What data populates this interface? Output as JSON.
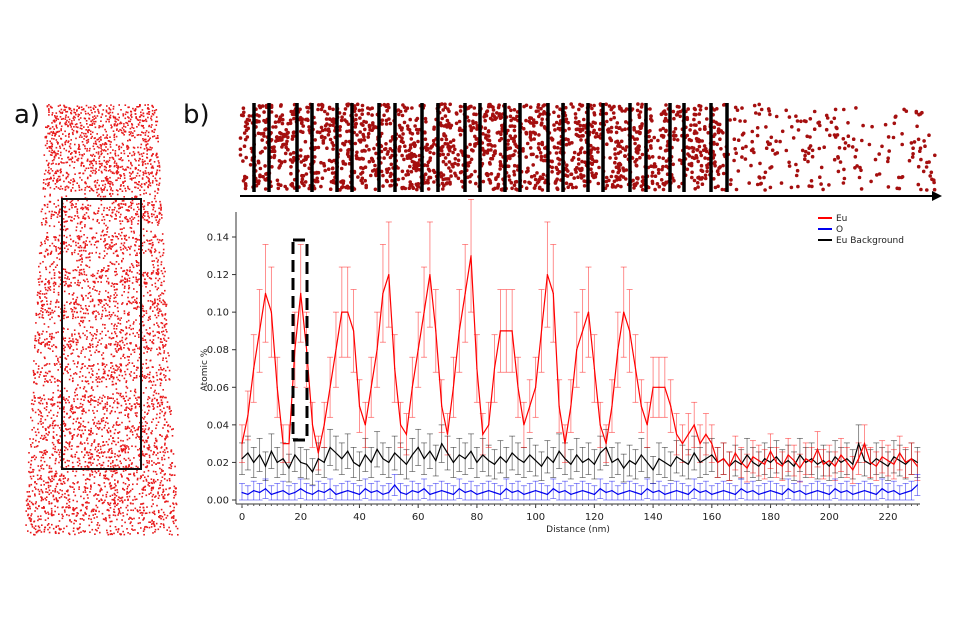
{
  "panels": {
    "a_label": "a)",
    "b_label": "b)"
  },
  "colors": {
    "eu": "#ff0000",
    "o": "#0000ee",
    "eu_background": "#000000",
    "atoms_a": "#e8191b",
    "atoms_b": "#a50f0f"
  },
  "chart_data": {
    "type": "line",
    "xlabel": "Distance (nm)",
    "ylabel": "Atomic %",
    "xlim": [
      0,
      230
    ],
    "ylim": [
      0,
      0.153
    ],
    "xticks": [
      "0",
      "20",
      "40",
      "60",
      "80",
      "100",
      "120",
      "140",
      "160",
      "180",
      "200",
      "220"
    ],
    "yticks": [
      "0.00",
      "0.02",
      "0.04",
      "0.06",
      "0.08",
      "0.10",
      "0.12",
      "0.14"
    ],
    "legend_position": "top-right",
    "grid": false,
    "error_bars": true,
    "highlight_region_nm": [
      18,
      22
    ],
    "x_step_nm": 2,
    "series": [
      {
        "name": "Eu",
        "color": "#ff0000",
        "values": [
          0.03,
          0.045,
          0.07,
          0.09,
          0.11,
          0.1,
          0.06,
          0.03,
          0.03,
          0.08,
          0.11,
          0.08,
          0.04,
          0.025,
          0.04,
          0.06,
          0.08,
          0.1,
          0.1,
          0.09,
          0.05,
          0.04,
          0.06,
          0.08,
          0.11,
          0.12,
          0.07,
          0.04,
          0.035,
          0.06,
          0.08,
          0.1,
          0.12,
          0.09,
          0.05,
          0.035,
          0.06,
          0.09,
          0.11,
          0.13,
          0.07,
          0.035,
          0.04,
          0.07,
          0.09,
          0.09,
          0.09,
          0.06,
          0.04,
          0.05,
          0.06,
          0.09,
          0.12,
          0.11,
          0.05,
          0.03,
          0.05,
          0.08,
          0.09,
          0.1,
          0.07,
          0.04,
          0.03,
          0.05,
          0.08,
          0.1,
          0.09,
          0.07,
          0.05,
          0.04,
          0.06,
          0.06,
          0.06,
          0.05,
          0.035,
          0.03,
          0.035,
          0.04,
          0.03,
          0.035,
          0.03,
          0.02,
          0.022,
          0.018,
          0.025,
          0.02,
          0.017,
          0.023,
          0.021,
          0.019,
          0.026,
          0.02,
          0.018,
          0.024,
          0.021,
          0.017,
          0.022,
          0.02,
          0.027,
          0.019,
          0.021,
          0.018,
          0.024,
          0.02,
          0.016,
          0.022,
          0.03,
          0.02,
          0.018,
          0.023,
          0.021,
          0.019,
          0.025,
          0.02,
          0.022,
          0.018
        ]
      },
      {
        "name": "O",
        "color": "#0000ee",
        "values": [
          0.004,
          0.003,
          0.005,
          0.004,
          0.006,
          0.003,
          0.004,
          0.005,
          0.003,
          0.004,
          0.006,
          0.004,
          0.003,
          0.005,
          0.004,
          0.006,
          0.003,
          0.004,
          0.005,
          0.004,
          0.003,
          0.006,
          0.004,
          0.005,
          0.003,
          0.004,
          0.008,
          0.004,
          0.003,
          0.005,
          0.004,
          0.006,
          0.003,
          0.004,
          0.005,
          0.004,
          0.003,
          0.006,
          0.004,
          0.005,
          0.003,
          0.004,
          0.005,
          0.004,
          0.003,
          0.006,
          0.004,
          0.005,
          0.003,
          0.004,
          0.005,
          0.004,
          0.003,
          0.006,
          0.004,
          0.005,
          0.003,
          0.004,
          0.005,
          0.004,
          0.003,
          0.006,
          0.004,
          0.005,
          0.003,
          0.004,
          0.005,
          0.004,
          0.003,
          0.006,
          0.004,
          0.005,
          0.003,
          0.004,
          0.005,
          0.004,
          0.003,
          0.006,
          0.004,
          0.005,
          0.003,
          0.004,
          0.005,
          0.004,
          0.003,
          0.006,
          0.004,
          0.005,
          0.003,
          0.004,
          0.005,
          0.004,
          0.003,
          0.006,
          0.004,
          0.005,
          0.003,
          0.004,
          0.005,
          0.004,
          0.003,
          0.006,
          0.004,
          0.005,
          0.003,
          0.004,
          0.005,
          0.004,
          0.003,
          0.006,
          0.004,
          0.005,
          0.003,
          0.004,
          0.005,
          0.008
        ]
      },
      {
        "name": "Eu Background",
        "color": "#000000",
        "values": [
          0.022,
          0.025,
          0.02,
          0.024,
          0.018,
          0.026,
          0.02,
          0.022,
          0.017,
          0.024,
          0.02,
          0.019,
          0.015,
          0.022,
          0.02,
          0.028,
          0.025,
          0.022,
          0.026,
          0.02,
          0.018,
          0.024,
          0.02,
          0.027,
          0.022,
          0.02,
          0.025,
          0.022,
          0.019,
          0.024,
          0.028,
          0.022,
          0.026,
          0.021,
          0.03,
          0.025,
          0.02,
          0.024,
          0.022,
          0.026,
          0.02,
          0.024,
          0.021,
          0.019,
          0.023,
          0.02,
          0.025,
          0.022,
          0.02,
          0.024,
          0.021,
          0.018,
          0.023,
          0.02,
          0.026,
          0.022,
          0.019,
          0.024,
          0.02,
          0.022,
          0.019,
          0.025,
          0.028,
          0.02,
          0.022,
          0.017,
          0.021,
          0.019,
          0.024,
          0.02,
          0.016,
          0.022,
          0.02,
          0.018,
          0.023,
          0.021,
          0.019,
          0.025,
          0.02,
          0.022,
          0.024,
          0.02,
          0.022,
          0.018,
          0.021,
          0.019,
          0.024,
          0.02,
          0.018,
          0.022,
          0.02,
          0.023,
          0.019,
          0.021,
          0.018,
          0.024,
          0.02,
          0.022,
          0.019,
          0.021,
          0.018,
          0.023,
          0.02,
          0.022,
          0.019,
          0.03,
          0.021,
          0.019,
          0.022,
          0.02,
          0.018,
          0.023,
          0.021,
          0.019,
          0.022,
          0.02
        ]
      }
    ]
  }
}
